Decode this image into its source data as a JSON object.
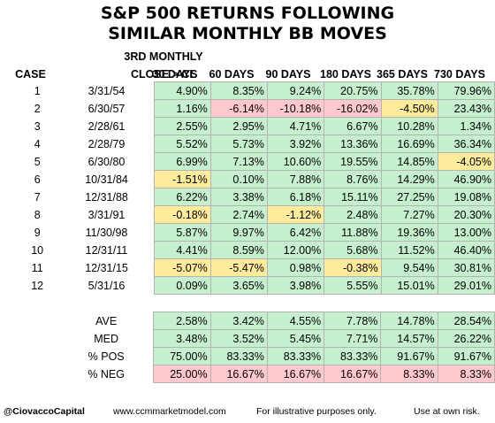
{
  "title_line1": "S&P 500 RETURNS FOLLOWING",
  "title_line2": "SIMILAR MONTHLY BB MOVES",
  "headers": {
    "case": "CASE",
    "date_line1": "3RD MONTHLY",
    "date_line2": "CLOSE > CL",
    "periods": [
      "30 DAYS",
      "60 DAYS",
      "90 DAYS",
      "180 DAYS",
      "365 DAYS",
      "730 DAYS"
    ]
  },
  "colors": {
    "positive": "#c6efce",
    "negative": "#ffc7ce",
    "caution": "#ffeb9c"
  },
  "chart_data": {
    "type": "table",
    "rows": [
      {
        "case": "1",
        "date": "3/31/54",
        "values": [
          "4.90%",
          "8.35%",
          "9.24%",
          "20.75%",
          "35.78%",
          "79.96%"
        ],
        "styles": [
          "pos",
          "pos",
          "pos",
          "pos",
          "pos",
          "pos"
        ]
      },
      {
        "case": "2",
        "date": "6/30/57",
        "values": [
          "1.16%",
          "-6.14%",
          "-10.18%",
          "-16.02%",
          "-4.50%",
          "23.43%"
        ],
        "styles": [
          "pos",
          "neg",
          "neg",
          "neg",
          "amb",
          "pos"
        ]
      },
      {
        "case": "3",
        "date": "2/28/61",
        "values": [
          "2.55%",
          "2.95%",
          "4.71%",
          "6.67%",
          "10.28%",
          "1.34%"
        ],
        "styles": [
          "pos",
          "pos",
          "pos",
          "pos",
          "pos",
          "pos"
        ]
      },
      {
        "case": "4",
        "date": "2/28/79",
        "values": [
          "5.52%",
          "5.73%",
          "3.92%",
          "13.36%",
          "16.69%",
          "36.34%"
        ],
        "styles": [
          "pos",
          "pos",
          "pos",
          "pos",
          "pos",
          "pos"
        ]
      },
      {
        "case": "5",
        "date": "6/30/80",
        "values": [
          "6.99%",
          "7.13%",
          "10.60%",
          "19.55%",
          "14.85%",
          "-4.05%"
        ],
        "styles": [
          "pos",
          "pos",
          "pos",
          "pos",
          "pos",
          "amb"
        ]
      },
      {
        "case": "6",
        "date": "10/31/84",
        "values": [
          "-1.51%",
          "0.10%",
          "7.88%",
          "8.76%",
          "14.29%",
          "46.90%"
        ],
        "styles": [
          "amb",
          "pos",
          "pos",
          "pos",
          "pos",
          "pos"
        ]
      },
      {
        "case": "7",
        "date": "12/31/88",
        "values": [
          "6.22%",
          "3.38%",
          "6.18%",
          "15.11%",
          "27.25%",
          "19.08%"
        ],
        "styles": [
          "pos",
          "pos",
          "pos",
          "pos",
          "pos",
          "pos"
        ]
      },
      {
        "case": "8",
        "date": "3/31/91",
        "values": [
          "-0.18%",
          "2.74%",
          "-1.12%",
          "2.48%",
          "7.27%",
          "20.30%"
        ],
        "styles": [
          "amb",
          "pos",
          "amb",
          "pos",
          "pos",
          "pos"
        ]
      },
      {
        "case": "9",
        "date": "11/30/98",
        "values": [
          "5.87%",
          "9.97%",
          "6.42%",
          "11.88%",
          "19.36%",
          "13.00%"
        ],
        "styles": [
          "pos",
          "pos",
          "pos",
          "pos",
          "pos",
          "pos"
        ]
      },
      {
        "case": "10",
        "date": "12/31/11",
        "values": [
          "4.41%",
          "8.59%",
          "12.00%",
          "5.68%",
          "11.52%",
          "46.40%"
        ],
        "styles": [
          "pos",
          "pos",
          "pos",
          "pos",
          "pos",
          "pos"
        ]
      },
      {
        "case": "11",
        "date": "12/31/15",
        "values": [
          "-5.07%",
          "-5.47%",
          "0.98%",
          "-0.38%",
          "9.54%",
          "30.81%"
        ],
        "styles": [
          "amb",
          "amb",
          "pos",
          "amb",
          "pos",
          "pos"
        ]
      },
      {
        "case": "12",
        "date": "5/31/16",
        "values": [
          "0.09%",
          "3.65%",
          "3.98%",
          "5.55%",
          "15.01%",
          "29.01%"
        ],
        "styles": [
          "pos",
          "pos",
          "pos",
          "pos",
          "pos",
          "pos"
        ]
      }
    ],
    "summary": [
      {
        "label": "AVE",
        "values": [
          "2.58%",
          "3.42%",
          "4.55%",
          "7.78%",
          "14.78%",
          "28.54%"
        ],
        "style": "pos"
      },
      {
        "label": "MED",
        "values": [
          "3.48%",
          "3.52%",
          "5.45%",
          "7.71%",
          "14.57%",
          "26.22%"
        ],
        "style": "pos"
      },
      {
        "label": "% POS",
        "values": [
          "75.00%",
          "83.33%",
          "83.33%",
          "83.33%",
          "91.67%",
          "91.67%"
        ],
        "style": "pos"
      },
      {
        "label": "% NEG",
        "values": [
          "25.00%",
          "16.67%",
          "16.67%",
          "16.67%",
          "8.33%",
          "8.33%"
        ],
        "style": "neg"
      }
    ]
  },
  "footer": {
    "handle": "@CiovaccoCapital",
    "site": "www.ccmmarketmodel.com",
    "note": "For illustrative purposes only.",
    "risk": "Use at own risk."
  }
}
